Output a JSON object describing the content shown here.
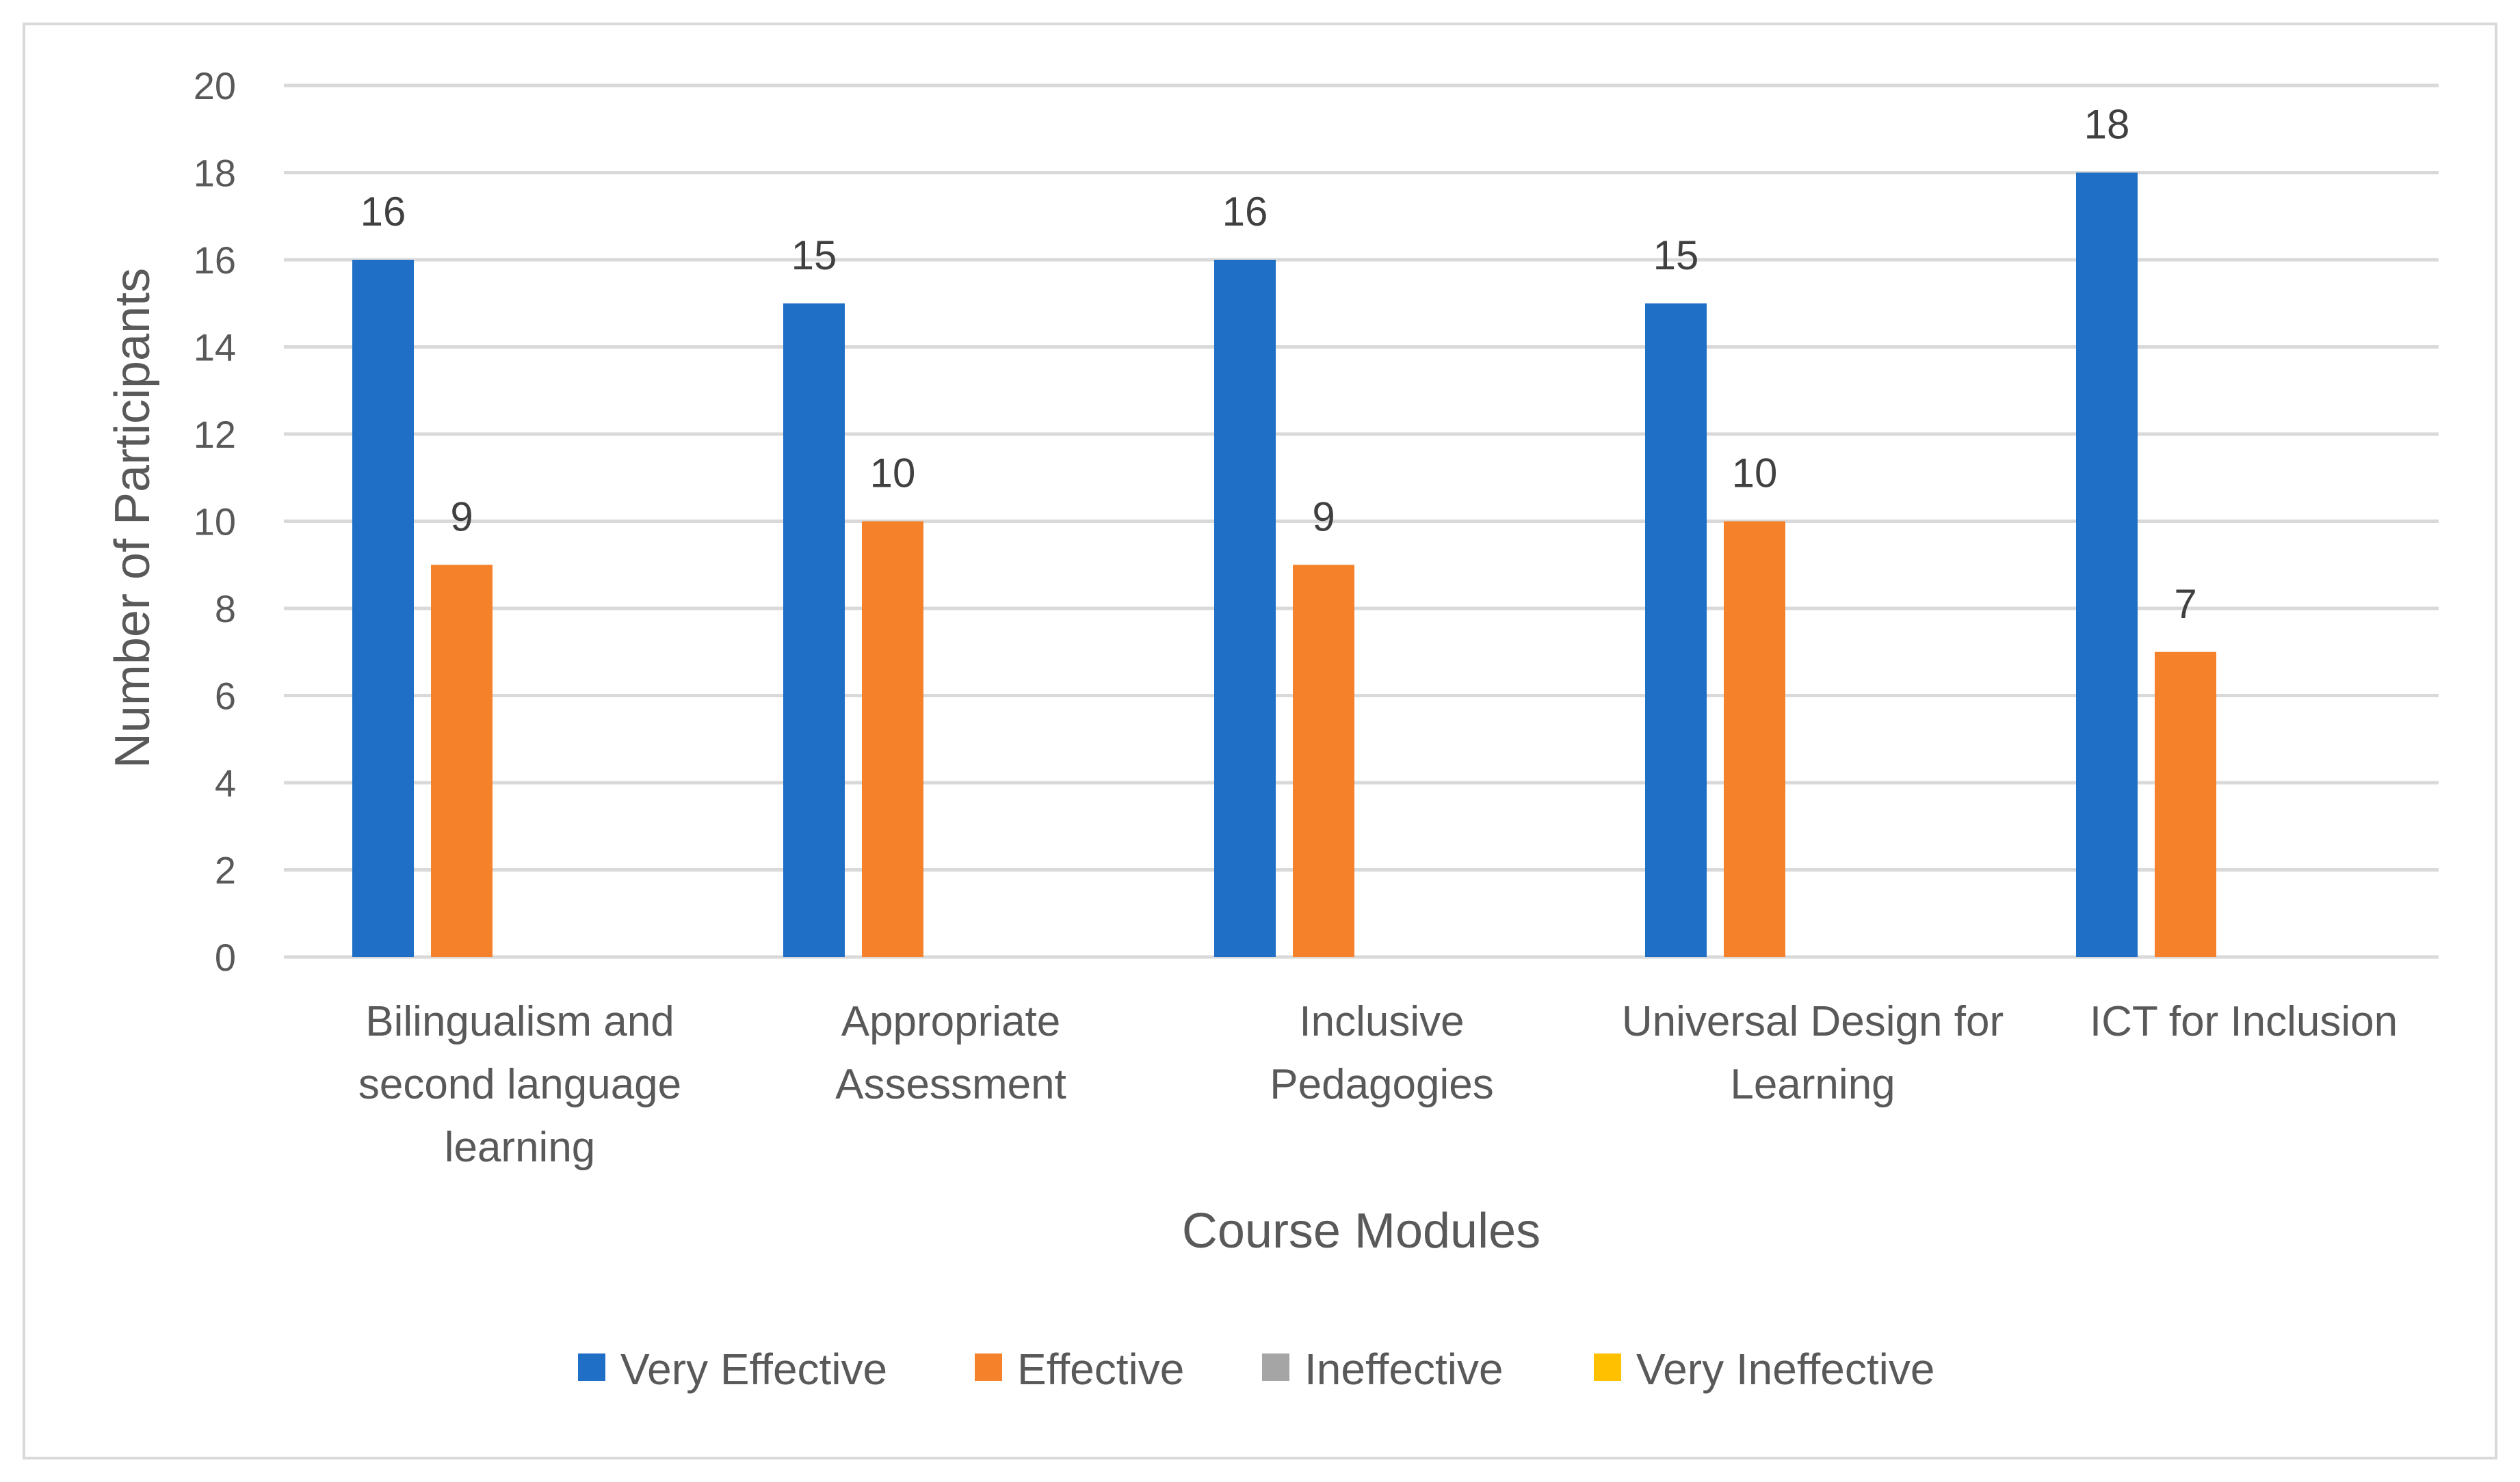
{
  "chart_data": {
    "type": "bar",
    "title": "",
    "xlabel": "Course Modules",
    "ylabel": "Number of  Participants",
    "ylim": [
      0,
      20
    ],
    "yticks": [
      0,
      2,
      4,
      6,
      8,
      10,
      12,
      14,
      16,
      18,
      20
    ],
    "grid": true,
    "legend_position": "bottom",
    "categories": [
      [
        "Bilingualism and",
        "second language",
        "learning"
      ],
      [
        "Appropriate",
        "Assessment"
      ],
      [
        "Inclusive",
        "Pedagogies"
      ],
      [
        "Universal Design for",
        "Learning"
      ],
      [
        "ICT for Inclusion"
      ]
    ],
    "series": [
      {
        "name": "Very Effective",
        "color": "#1f6fc6",
        "values": [
          16,
          15,
          16,
          15,
          18
        ]
      },
      {
        "name": "Effective",
        "color": "#f5822a",
        "values": [
          9,
          10,
          9,
          10,
          7
        ]
      },
      {
        "name": "Ineffective",
        "color": "#a5a5a5",
        "values": [
          0,
          0,
          0,
          0,
          0
        ]
      },
      {
        "name": "Very Ineffective",
        "color": "#ffc000",
        "values": [
          0,
          0,
          0,
          0,
          0
        ]
      }
    ],
    "data_labels_series": [
      "Very Effective",
      "Effective"
    ],
    "gridline_color": "#d9d9d9",
    "frame_color": "#d9d9d9"
  }
}
